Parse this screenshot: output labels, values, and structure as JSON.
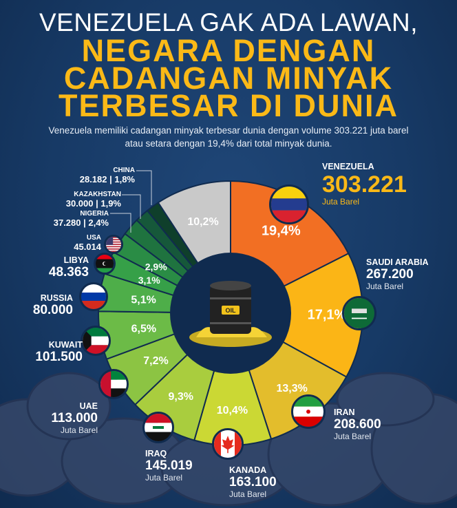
{
  "title_line1": "VENEZUELA GAK ADA LAWAN,",
  "title_line2": "NEGARA DENGAN",
  "title_line3": "CADANGAN MINYAK",
  "title_line4": "TERBESAR DI DUNIA",
  "subtitle": "Venezuela memiliki cadangan minyak terbesar dunia dengan volume 303.221 juta barel atau setara dengan 19,4% dari total minyak dunia.",
  "unit": "Juta Barel",
  "center_icon": "oil-barrel-splash-icon",
  "chart_data": {
    "type": "pie",
    "variant": "donut",
    "start": "12 o'clock, clockwise",
    "categories": [
      "VENEZUELA",
      "SAUDI ARABIA",
      "IRAN",
      "KANADA",
      "IRAQ",
      "UAE",
      "KUWAIT",
      "RUSSIA",
      "LIBYA",
      "USA",
      "NIGERIA",
      "KAZAKHSTAN",
      "CHINA",
      ""
    ],
    "values": [
      19.4,
      17.1,
      13.3,
      10.4,
      9.3,
      7.2,
      6.5,
      5.1,
      3.1,
      2.9,
      2.4,
      1.9,
      1.8,
      10.2
    ],
    "percent_labels": [
      "19,4%",
      "17,1%",
      "13,3%",
      "10,4%",
      "9,3%",
      "7,2%",
      "6,5%",
      "5,1%",
      "3,1%",
      "2,9%",
      "2,4%",
      "1,9%",
      "1,8%",
      "10,2%"
    ],
    "reserves_labels": [
      "303.221",
      "267.200",
      "208.600",
      "163.100",
      "145.019",
      "113.000",
      "101.500",
      "80.000",
      "48.363",
      "45.014",
      "37.280",
      "30.000",
      "28.182",
      ""
    ],
    "colors": [
      "#f26f23",
      "#fbb516",
      "#e3bd2c",
      "#cbd834",
      "#a9cd3e",
      "#8cc443",
      "#6cbb47",
      "#4eae49",
      "#36a048",
      "#2a8c45",
      "#1f733f",
      "#16583a",
      "#0f3f2b",
      "#c9c9c9"
    ]
  },
  "countries": {
    "venezuela": {
      "name": "VENEZUELA",
      "value": "303.221",
      "unit": "Juta Barel",
      "flag": "venezuela-flag-icon"
    },
    "saudi": {
      "name": "SAUDI ARABIA",
      "value": "267.200",
      "unit": "Juta Barel",
      "flag": "saudi-arabia-flag-icon"
    },
    "iran": {
      "name": "IRAN",
      "value": "208.600",
      "unit": "Juta Barel",
      "flag": "iran-flag-icon"
    },
    "kanada": {
      "name": "KANADA",
      "value": "163.100",
      "unit": "Juta Barel",
      "flag": "canada-flag-icon"
    },
    "iraq": {
      "name": "IRAQ",
      "value": "145.019",
      "unit": "Juta Barel",
      "flag": "iraq-flag-icon"
    },
    "uae": {
      "name": "UAE",
      "value": "113.000",
      "unit": "Juta Barel",
      "flag": "uae-flag-icon"
    },
    "kuwait": {
      "name": "KUWAIT",
      "value": "101.500",
      "flag": "kuwait-flag-icon"
    },
    "russia": {
      "name": "RUSSIA",
      "value": "80.000",
      "flag": "russia-flag-icon"
    },
    "libya": {
      "name": "LIBYA",
      "value": "48.363",
      "flag": "libya-flag-icon"
    },
    "usa": {
      "name": "USA",
      "value": "45.014",
      "flag": "usa-flag-icon"
    },
    "nigeria": {
      "name": "NIGERIA",
      "value": "37.280 | 2,4%"
    },
    "kazakhstan": {
      "name": "KAZAKHSTAN",
      "value": "30.000 | 1,9%"
    },
    "china": {
      "name": "CHINA",
      "value": "28.182 | 1,8%"
    }
  }
}
